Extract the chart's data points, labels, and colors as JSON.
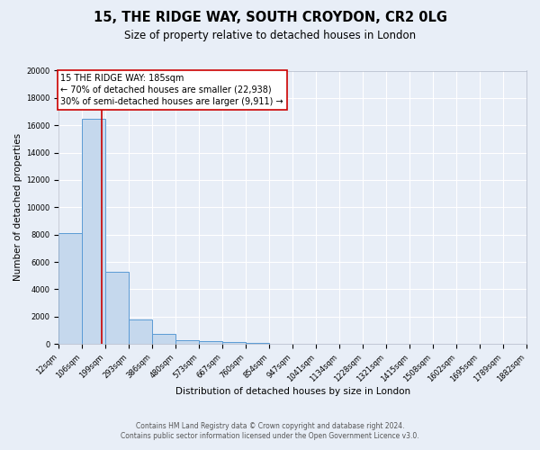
{
  "title_line1": "15, THE RIDGE WAY, SOUTH CROYDON, CR2 0LG",
  "title_line2": "Size of property relative to detached houses in London",
  "xlabel": "Distribution of detached houses by size in London",
  "ylabel": "Number of detached properties",
  "footer_line1": "Contains HM Land Registry data © Crown copyright and database right 2024.",
  "footer_line2": "Contains public sector information licensed under the Open Government Licence v3.0.",
  "bin_edges": [
    12,
    106,
    199,
    293,
    386,
    480,
    573,
    667,
    760,
    854,
    947,
    1041,
    1134,
    1228,
    1321,
    1415,
    1508,
    1602,
    1695,
    1789,
    1882
  ],
  "bar_heights": [
    8100,
    16500,
    5300,
    1800,
    700,
    300,
    200,
    150,
    100,
    0,
    0,
    0,
    0,
    0,
    0,
    0,
    0,
    0,
    0,
    0
  ],
  "bar_color": "#c5d8ed",
  "bar_edge_color": "#5b9bd5",
  "property_size": 185,
  "red_line_color": "#cc0000",
  "annotation_title": "15 THE RIDGE WAY: 185sqm",
  "annotation_line1": "← 70% of detached houses are smaller (22,938)",
  "annotation_line2": "30% of semi-detached houses are larger (9,911) →",
  "annotation_box_edge": "#cc0000",
  "ylim": [
    0,
    20000
  ],
  "yticks": [
    0,
    2000,
    4000,
    6000,
    8000,
    10000,
    12000,
    14000,
    16000,
    18000,
    20000
  ],
  "background_color": "#e8eef7",
  "grid_color": "#ffffff",
  "title_fontsize": 10.5,
  "subtitle_fontsize": 8.5,
  "axis_label_fontsize": 7.5,
  "tick_fontsize": 6,
  "annotation_fontsize": 7,
  "footer_fontsize": 5.5
}
